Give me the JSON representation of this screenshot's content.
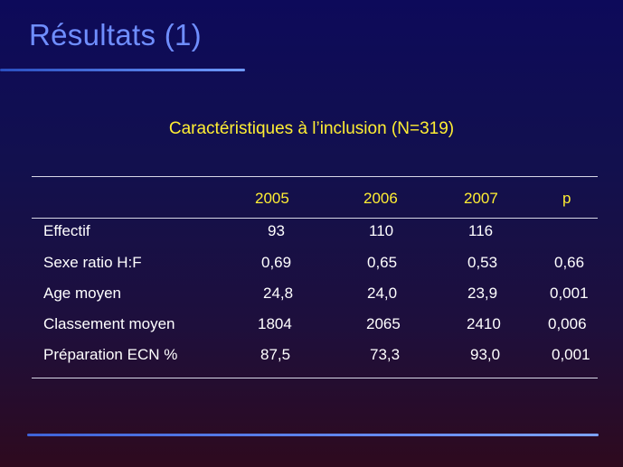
{
  "slide": {
    "title": "Résultats (1)",
    "subtitle": "Caractéristiques à l’inclusion (N=319)"
  },
  "table": {
    "headers": [
      "",
      "2005",
      "2006",
      "2007",
      "p"
    ],
    "rows": [
      {
        "label": "Effectif",
        "values": [
          "93",
          "110",
          "116",
          ""
        ]
      },
      {
        "label": "Sexe ratio H:F",
        "values": [
          "0,69",
          "0,65",
          "0,53",
          "0,66"
        ]
      },
      {
        "label": "Age moyen",
        "values": [
          "24,8",
          "24,0",
          "23,9",
          "0,001"
        ]
      },
      {
        "label": "Classement moyen",
        "values": [
          "1804",
          "2065",
          "2410",
          "0,006"
        ]
      },
      {
        "label": "Préparation ECN %",
        "values": [
          "87,5",
          "73,3",
          "93,0",
          "0,001"
        ]
      }
    ]
  },
  "colors": {
    "title": "#6f8eff",
    "subtitle": "#ffee33",
    "header": "#ffee33",
    "body_text": "#ffffff"
  }
}
